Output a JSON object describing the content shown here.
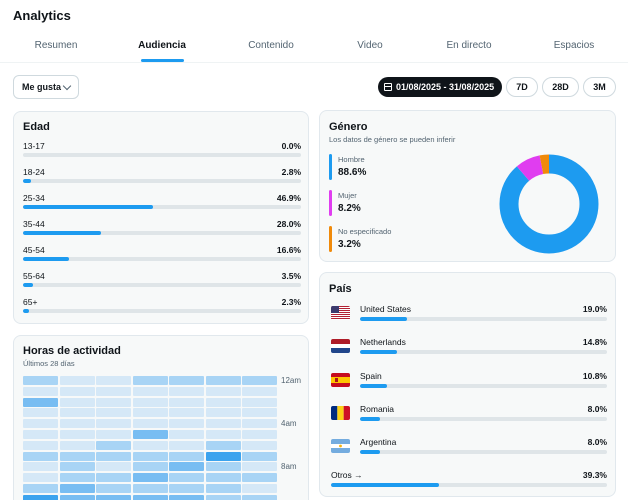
{
  "app": {
    "title": "Analytics"
  },
  "tabs": [
    {
      "label": "Resumen",
      "active": false
    },
    {
      "label": "Audiencia",
      "active": true
    },
    {
      "label": "Contenido",
      "active": false
    },
    {
      "label": "Video",
      "active": false
    },
    {
      "label": "En directo",
      "active": false
    },
    {
      "label": "Espacios",
      "active": false
    }
  ],
  "toolbar": {
    "metric_select": "Me gusta",
    "date_range": "01/08/2025 - 31/08/2025",
    "periods": [
      "7D",
      "28D",
      "3M"
    ]
  },
  "age": {
    "title": "Edad",
    "rows": [
      {
        "label": "13-17",
        "display": "0.0%",
        "percent": 0.0
      },
      {
        "label": "18-24",
        "display": "2.8%",
        "percent": 2.8
      },
      {
        "label": "25-34",
        "display": "46.9%",
        "percent": 46.9
      },
      {
        "label": "35-44",
        "display": "28.0%",
        "percent": 28.0
      },
      {
        "label": "45-54",
        "display": "16.6%",
        "percent": 16.6
      },
      {
        "label": "55-64",
        "display": "3.5%",
        "percent": 3.5
      },
      {
        "label": "65+",
        "display": "2.3%",
        "percent": 2.3
      }
    ]
  },
  "gender": {
    "title": "Género",
    "subtitle": "Los datos de género se pueden inferir",
    "items": [
      {
        "label": "Hombre",
        "display": "88.6%",
        "percent": 88.6,
        "color": "#1d9bf0"
      },
      {
        "label": "Mujer",
        "display": "8.2%",
        "percent": 8.2,
        "color": "#e03df0"
      },
      {
        "label": "No especificado",
        "display": "3.2%",
        "percent": 3.2,
        "color": "#f08a0a"
      }
    ]
  },
  "country": {
    "title": "País",
    "rows": [
      {
        "name": "United States",
        "display": "19.0%",
        "percent": 19.0,
        "flag": "us-flag-icon"
      },
      {
        "name": "Netherlands",
        "display": "14.8%",
        "percent": 14.8,
        "flag": "netherlands-flag-icon"
      },
      {
        "name": "Spain",
        "display": "10.8%",
        "percent": 10.8,
        "flag": "spain-flag-icon"
      },
      {
        "name": "Romania",
        "display": "8.0%",
        "percent": 8.0,
        "flag": "romania-flag-icon"
      },
      {
        "name": "Argentina",
        "display": "8.0%",
        "percent": 8.0,
        "flag": "argentina-flag-icon"
      }
    ],
    "others": {
      "label": "Otros →",
      "display": "39.3%",
      "percent": 39.3
    }
  },
  "activity": {
    "title": "Horas de actividad",
    "subtitle": "Últimos 28 días",
    "time_labels": [
      "12am",
      "4am",
      "8am"
    ],
    "levels": [
      [
        2,
        1,
        1,
        2,
        2,
        2,
        2
      ],
      [
        1,
        1,
        1,
        1,
        1,
        1,
        1
      ],
      [
        3,
        1,
        1,
        1,
        1,
        1,
        1
      ],
      [
        1,
        1,
        1,
        1,
        1,
        1,
        1
      ],
      [
        1,
        1,
        1,
        1,
        1,
        1,
        1
      ],
      [
        1,
        1,
        1,
        3,
        1,
        1,
        1
      ],
      [
        1,
        1,
        2,
        1,
        1,
        2,
        1
      ],
      [
        2,
        2,
        2,
        2,
        2,
        4,
        2
      ],
      [
        1,
        2,
        1,
        2,
        3,
        2,
        1
      ],
      [
        1,
        2,
        2,
        3,
        2,
        2,
        2
      ],
      [
        2,
        3,
        2,
        2,
        2,
        2,
        1
      ],
      [
        4,
        3,
        3,
        3,
        3,
        2,
        2
      ],
      [
        3,
        4,
        3,
        4,
        3,
        3,
        2
      ]
    ],
    "level_colors": [
      "#e8f1f8",
      "#d5e8f7",
      "#a8d4f5",
      "#78bdf2",
      "#3ca3ee"
    ]
  }
}
